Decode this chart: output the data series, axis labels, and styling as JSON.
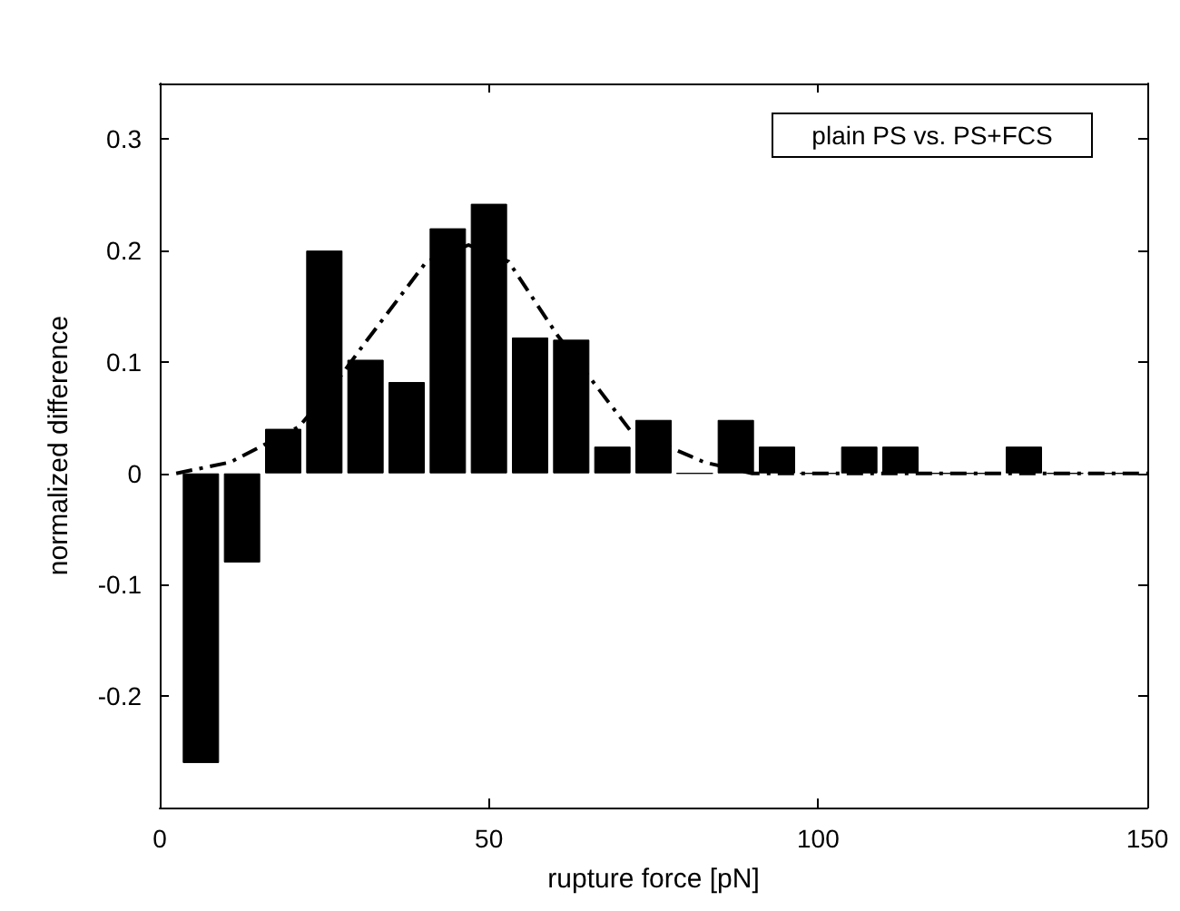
{
  "chart_data": {
    "type": "bar",
    "xlabel": "rupture force [pN]",
    "ylabel": "normalized difference",
    "annotations": [
      "plain PS vs. PS+FCS"
    ],
    "xlim": [
      0,
      150
    ],
    "xticks": [
      0,
      50,
      100,
      150
    ],
    "ylim": [
      -0.3,
      0.35
    ],
    "yticks": [
      -0.2,
      -0.1,
      0,
      0.1,
      0.2,
      0.3
    ],
    "grid": false,
    "series": [
      {
        "color": "#000000",
        "x": [
          6.25,
          12.5,
          18.75,
          25,
          31.25,
          37.5,
          43.75,
          50,
          56.25,
          62.5,
          68.75,
          75,
          81.25,
          87.5,
          93.75,
          100,
          106.25,
          112.5,
          118.75,
          125,
          131.25,
          137.5,
          143.75
        ],
        "values": [
          -0.26,
          -0.08,
          0.04,
          0.2,
          0.102,
          0.082,
          0.22,
          0.242,
          0.122,
          0.12,
          0.024,
          0.048,
          0,
          0.048,
          0.024,
          0,
          0.024,
          0.024,
          0,
          0,
          0.024,
          0,
          0
        ]
      },
      {
        "type": "line",
        "color": "#000000",
        "line_style": "dashed",
        "marker": "none",
        "x": [
          2.5,
          10.7,
          21.2,
          27.3,
          30.9,
          40.5,
          46.9,
          53,
          60.4,
          71.4,
          82.7,
          90,
          100,
          150
        ],
        "values": [
          0,
          0.01,
          0.042,
          0.086,
          0.115,
          0.19,
          0.205,
          0.19,
          0.124,
          0.039,
          0.01,
          0,
          0,
          0
        ]
      }
    ]
  }
}
